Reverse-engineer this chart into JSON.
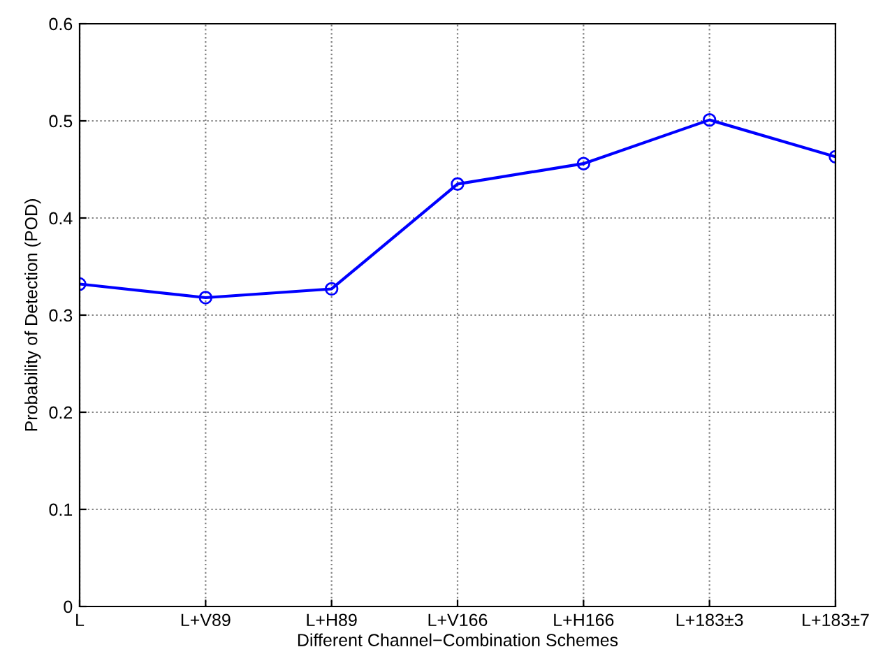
{
  "chart_data": {
    "type": "line",
    "xlabel": "Different Channel−Combination Schemes",
    "ylabel": "Probability of Detection (POD)",
    "categories": [
      "L",
      "L+V89",
      "L+H89",
      "L+V166",
      "L+H166",
      "L+183±3",
      "L+183±7"
    ],
    "series": [
      {
        "color": "#0000ff",
        "values": [
          0.332,
          0.318,
          0.327,
          0.435,
          0.456,
          0.501,
          0.463
        ]
      }
    ],
    "ylim": [
      0,
      0.6
    ],
    "yticks": [
      0,
      0.1,
      0.2,
      0.3,
      0.4,
      0.5,
      0.6
    ],
    "grid": true,
    "marker": "circle",
    "line_style": "solid"
  }
}
